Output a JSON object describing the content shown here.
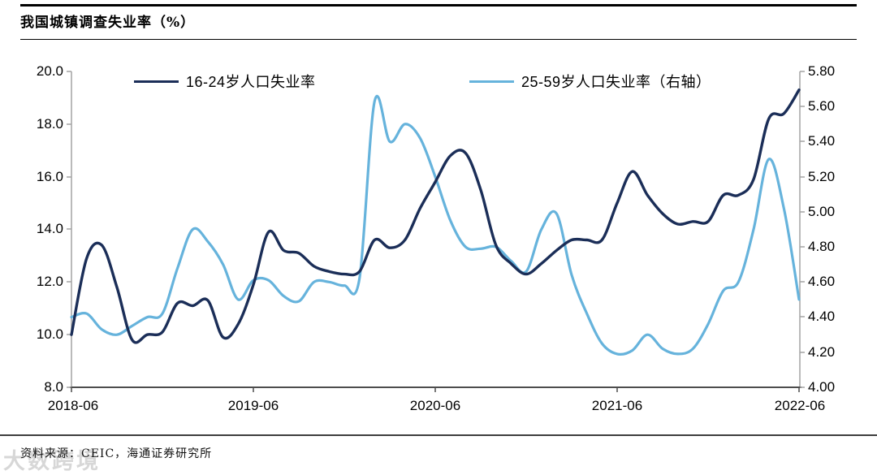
{
  "header": {
    "title": "我国城镇调查失业率（%）"
  },
  "footer": {
    "source": "资料来源：CEIC，海通证券研究所",
    "watermark": "大数跨境"
  },
  "colors": {
    "series1": "#1b2e58",
    "series2": "#66b3dc",
    "axis_side": "#a3a3a3",
    "axis_bottom": "#4d4d4d",
    "header_rule": "#000000",
    "footer_rule": "#3d3d3d"
  },
  "chart_data": {
    "type": "line",
    "title": "我国城镇调查失业率（%）",
    "grid": false,
    "legend_position": "top",
    "x_tick_labels": [
      "2018-06",
      "2019-06",
      "2020-06",
      "2021-06",
      "2022-06"
    ],
    "left_axis": {
      "min": 8.0,
      "max": 20.0,
      "ticks": [
        "20.0",
        "18.0",
        "16.0",
        "14.0",
        "12.0",
        "10.0",
        "8.0"
      ]
    },
    "right_axis": {
      "min": 4.0,
      "max": 5.8,
      "ticks": [
        "5.80",
        "5.60",
        "5.40",
        "5.20",
        "5.00",
        "4.80",
        "4.60",
        "4.40",
        "4.20",
        "4.00"
      ]
    },
    "x": [
      "2018-06",
      "2018-07",
      "2018-08",
      "2018-09",
      "2018-10",
      "2018-11",
      "2018-12",
      "2019-01",
      "2019-02",
      "2019-03",
      "2019-04",
      "2019-05",
      "2019-06",
      "2019-07",
      "2019-08",
      "2019-09",
      "2019-10",
      "2019-11",
      "2019-12",
      "2020-01",
      "2020-02",
      "2020-03",
      "2020-04",
      "2020-05",
      "2020-06",
      "2020-07",
      "2020-08",
      "2020-09",
      "2020-10",
      "2020-11",
      "2020-12",
      "2021-01",
      "2021-02",
      "2021-03",
      "2021-04",
      "2021-05",
      "2021-06",
      "2021-07",
      "2021-08",
      "2021-09",
      "2021-10",
      "2021-11",
      "2021-12",
      "2022-01",
      "2022-02",
      "2022-03",
      "2022-04",
      "2022-05",
      "2022-06"
    ],
    "series": [
      {
        "name": "16-24岁人口失业率",
        "axis": "left",
        "color": "#1b2e58",
        "values": [
          10.0,
          12.9,
          13.4,
          11.8,
          9.8,
          10.0,
          10.1,
          11.2,
          11.1,
          11.3,
          9.9,
          10.4,
          11.9,
          13.9,
          13.2,
          13.1,
          12.6,
          12.4,
          12.3,
          12.4,
          13.6,
          13.3,
          13.6,
          14.8,
          15.8,
          16.8,
          16.9,
          15.5,
          13.4,
          12.7,
          12.3,
          12.7,
          13.2,
          13.6,
          13.6,
          13.6,
          15.0,
          16.2,
          15.3,
          14.6,
          14.2,
          14.3,
          14.3,
          15.3,
          15.3,
          15.9,
          18.2,
          18.4,
          19.3
        ]
      },
      {
        "name": "25-59岁人口失业率（右轴）",
        "axis": "right",
        "color": "#66b3dc",
        "values": [
          4.4,
          4.42,
          4.33,
          4.3,
          4.35,
          4.4,
          4.42,
          4.68,
          4.9,
          4.83,
          4.7,
          4.5,
          4.61,
          4.61,
          4.52,
          4.49,
          4.6,
          4.6,
          4.58,
          4.62,
          5.63,
          5.4,
          5.5,
          5.42,
          5.2,
          4.95,
          4.8,
          4.79,
          4.8,
          4.72,
          4.66,
          4.9,
          4.99,
          4.64,
          4.42,
          4.25,
          4.19,
          4.21,
          4.3,
          4.22,
          4.19,
          4.22,
          4.36,
          4.55,
          4.6,
          4.9,
          5.3,
          5.02,
          4.5
        ]
      }
    ]
  }
}
